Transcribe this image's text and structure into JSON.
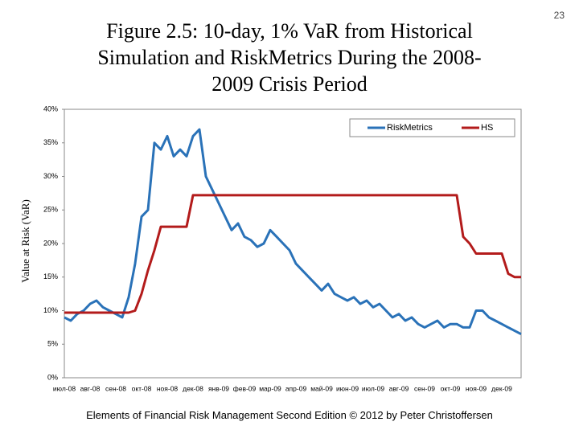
{
  "page_number": "23",
  "footer": "Elements of Financial Risk Management Second Edition © 2012  by Peter Christoffersen",
  "chart_data": {
    "type": "line",
    "title": "Figure 2.5: 10-day, 1% VaR from Historical Simulation and RiskMetrics During the 2008-2009 Crisis Period",
    "y_label": "Value at Risk (VaR)",
    "categories": [
      "июл-08",
      null,
      null,
      null,
      "авг-08",
      null,
      null,
      null,
      "сен-08",
      null,
      null,
      null,
      "окт-08",
      null,
      null,
      null,
      "ноя-08",
      null,
      null,
      null,
      "дек-08",
      null,
      null,
      null,
      "янв-09",
      null,
      null,
      null,
      "фев-09",
      null,
      null,
      null,
      "мар-09",
      null,
      null,
      null,
      "апр-09",
      null,
      null,
      null,
      "май-09",
      null,
      null,
      null,
      "июн-09",
      null,
      null,
      null,
      "июл-09",
      null,
      null,
      null,
      "авг-09",
      null,
      null,
      null,
      "сен-09",
      null,
      null,
      null,
      "окт-09",
      null,
      null,
      null,
      "ноя-09",
      null,
      null,
      null,
      "дек-09",
      null,
      null,
      null
    ],
    "series": [
      {
        "name": "RiskMetrics",
        "color": "#2a72b8",
        "values": [
          9,
          8.5,
          9.5,
          10,
          11,
          11.5,
          10.5,
          10,
          9.5,
          9,
          12,
          17,
          24,
          25,
          35,
          34,
          36,
          33,
          34,
          33,
          36,
          37,
          30,
          28,
          26,
          24,
          22,
          23,
          21,
          20.5,
          19.5,
          20,
          22,
          21,
          20,
          19,
          17,
          16,
          15,
          14,
          13,
          14,
          12.5,
          12,
          11.5,
          12,
          11,
          11.5,
          10.5,
          11,
          10,
          9,
          9.5,
          8.5,
          9,
          8,
          7.5,
          8,
          8.5,
          7.5,
          8,
          8,
          7.5,
          7.5,
          10,
          10,
          9,
          8.5,
          8,
          7.5,
          7,
          6.5
        ]
      },
      {
        "name": "HS",
        "color": "#b31b1b",
        "values": [
          9.7,
          9.7,
          9.7,
          9.7,
          9.7,
          9.7,
          9.7,
          9.7,
          9.7,
          9.7,
          9.7,
          10,
          12.5,
          16,
          19,
          22.5,
          22.5,
          22.5,
          22.5,
          22.5,
          27.2,
          27.2,
          27.2,
          27.2,
          27.2,
          27.2,
          27.2,
          27.2,
          27.2,
          27.2,
          27.2,
          27.2,
          27.2,
          27.2,
          27.2,
          27.2,
          27.2,
          27.2,
          27.2,
          27.2,
          27.2,
          27.2,
          27.2,
          27.2,
          27.2,
          27.2,
          27.2,
          27.2,
          27.2,
          27.2,
          27.2,
          27.2,
          27.2,
          27.2,
          27.2,
          27.2,
          27.2,
          27.2,
          27.2,
          27.2,
          27.2,
          27.2,
          21,
          20,
          18.5,
          18.5,
          18.5,
          18.5,
          18.5,
          15.5,
          15,
          15
        ]
      }
    ],
    "ylim": [
      0,
      40
    ],
    "yticks": [
      {
        "value": 0,
        "label": "0%"
      },
      {
        "value": 5,
        "label": "5%"
      },
      {
        "value": 10,
        "label": "10%"
      },
      {
        "value": 15,
        "label": "15%"
      },
      {
        "value": 20,
        "label": "20%"
      },
      {
        "value": 25,
        "label": "25%"
      },
      {
        "value": 30,
        "label": "30%"
      },
      {
        "value": 35,
        "label": "35%"
      },
      {
        "value": 40,
        "label": "40%"
      }
    ],
    "grid": false,
    "legend_position": "upper right"
  }
}
